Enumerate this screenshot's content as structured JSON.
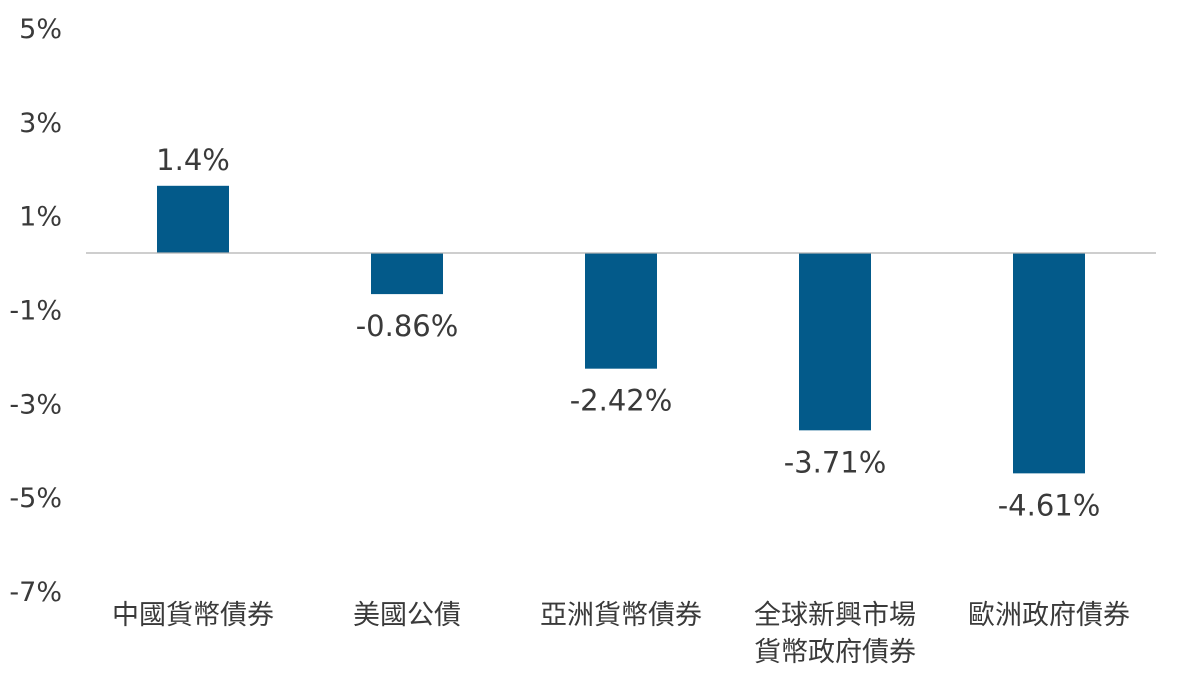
{
  "chart_data": {
    "type": "bar",
    "categories": [
      [
        "中國貨幣債券"
      ],
      [
        "美國公債"
      ],
      [
        "亞洲貨幣債券"
      ],
      [
        "全球新興市場",
        "貨幣政府債券"
      ],
      [
        "歐洲政府債券"
      ]
    ],
    "values": [
      1.4,
      -0.86,
      -2.42,
      -3.71,
      -4.61
    ],
    "data_labels": [
      "1.4%",
      "-0.86%",
      "-2.42%",
      "-3.71%",
      "-4.61%"
    ],
    "ylim": [
      -7,
      5
    ],
    "yticks": [
      5,
      3,
      1,
      -1,
      -3,
      -5,
      -7
    ],
    "ytick_labels": [
      "5%",
      "3%",
      "1%",
      "-1%",
      "-3%",
      "-5%",
      "-7%"
    ],
    "bar_color": "#035a8a",
    "baseline_color": "#b0b0b0",
    "grid": false,
    "legend": "none"
  }
}
